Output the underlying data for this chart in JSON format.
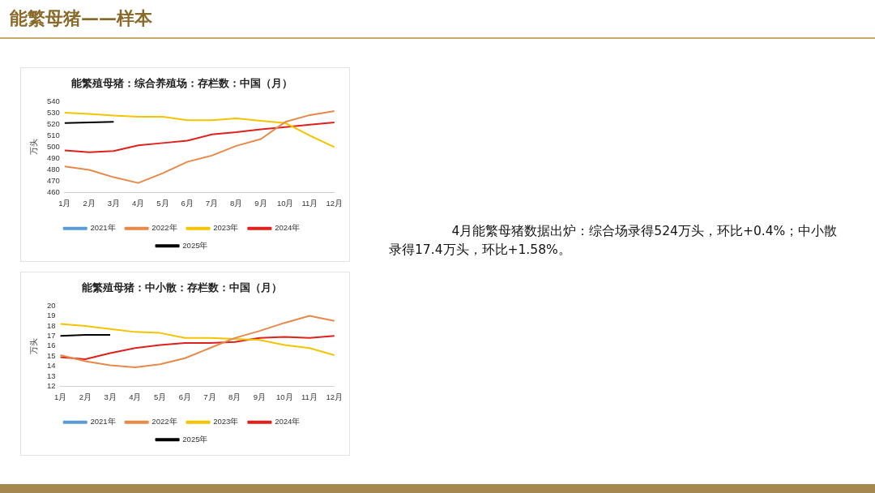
{
  "chart_data": [
    {
      "type": "line",
      "title": "能繁殖母猪：综合养殖场：存栏数：中国（月）",
      "ylabel": "万头",
      "categories": [
        "1月",
        "2月",
        "3月",
        "4月",
        "5月",
        "6月",
        "7月",
        "8月",
        "9月",
        "10月",
        "11月",
        "12月"
      ],
      "ylim": [
        460,
        540
      ],
      "yticks": [
        460,
        470,
        480,
        490,
        500,
        510,
        520,
        530,
        540
      ],
      "grid": false,
      "legend": "bottom",
      "marker": "none",
      "line_style": "solid",
      "series": [
        {
          "name": "2021年",
          "color": "#5b9bd5",
          "values": [
            null,
            null,
            null,
            null,
            null,
            null,
            null,
            null,
            null,
            null,
            null,
            null
          ]
        },
        {
          "name": "2022年",
          "color": "#e8894a",
          "values": [
            483,
            480,
            473.5,
            468.5,
            477,
            487,
            492.5,
            501,
            507,
            522,
            528,
            531.5
          ]
        },
        {
          "name": "2023年",
          "color": "#f5c400",
          "values": [
            530,
            529,
            527.5,
            526.5,
            526.5,
            523.5,
            523.5,
            525,
            523,
            521,
            510,
            500
          ]
        },
        {
          "name": "2024年",
          "color": "#e0201b",
          "values": [
            497,
            495.5,
            496.5,
            501.5,
            503.5,
            505.5,
            511,
            513,
            515.5,
            517.5,
            519.5,
            521.5
          ]
        },
        {
          "name": "2025年",
          "color": "#000000",
          "values": [
            521,
            521.5,
            522,
            null,
            null,
            null,
            null,
            null,
            null,
            null,
            null,
            null
          ]
        }
      ]
    },
    {
      "type": "line",
      "title": "能繁殖母猪：中小散：存栏数：中国（月）",
      "ylabel": "万头",
      "categories": [
        "1月",
        "2月",
        "3月",
        "4月",
        "5月",
        "6月",
        "7月",
        "8月",
        "9月",
        "10月",
        "11月",
        "12月"
      ],
      "ylim": [
        12,
        20
      ],
      "yticks": [
        12,
        13,
        14,
        15,
        16,
        17,
        18,
        19,
        20
      ],
      "grid": false,
      "legend": "bottom",
      "marker": "none",
      "line_style": "solid",
      "series": [
        {
          "name": "2021年",
          "color": "#5b9bd5",
          "values": [
            null,
            null,
            null,
            null,
            null,
            null,
            null,
            null,
            null,
            null,
            null,
            null
          ]
        },
        {
          "name": "2022年",
          "color": "#e8894a",
          "values": [
            15.1,
            14.5,
            14.1,
            13.9,
            14.2,
            14.8,
            15.8,
            16.8,
            17.5,
            18.3,
            19.0,
            18.5
          ]
        },
        {
          "name": "2023年",
          "color": "#f5c400",
          "values": [
            18.2,
            18.0,
            17.7,
            17.4,
            17.3,
            16.8,
            16.8,
            16.7,
            16.6,
            16.1,
            15.8,
            15.1
          ]
        },
        {
          "name": "2024年",
          "color": "#e0201b",
          "values": [
            14.9,
            14.7,
            15.3,
            15.8,
            16.1,
            16.3,
            16.3,
            16.4,
            16.8,
            16.9,
            16.8,
            17.0
          ]
        },
        {
          "name": "2025年",
          "color": "#000000",
          "values": [
            17.0,
            17.1,
            17.1,
            null,
            null,
            null,
            null,
            null,
            null,
            null,
            null,
            null
          ]
        }
      ]
    },
    {
      "type": "other",
      "title": "能繁母猪——样本",
      "annotations": [
        "4月能繁母猪数据出炉：综合场录得524万头，环比+0.4%；中小散录得17.4万头，环比+1.58%。"
      ]
    }
  ]
}
